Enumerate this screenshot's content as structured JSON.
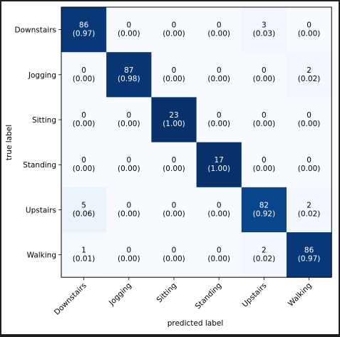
{
  "chart_data": {
    "type": "heatmap",
    "title": "",
    "xlabel": "predicted label",
    "ylabel": "true label",
    "x_categories": [
      "Downstairs",
      "Jogging",
      "Sitting",
      "Standing",
      "Upstairs",
      "Walking"
    ],
    "y_categories": [
      "Downstairs",
      "Jogging",
      "Sitting",
      "Standing",
      "Upstairs",
      "Walking"
    ],
    "counts": [
      [
        86,
        0,
        0,
        0,
        3,
        0
      ],
      [
        0,
        87,
        0,
        0,
        0,
        2
      ],
      [
        0,
        0,
        23,
        0,
        0,
        0
      ],
      [
        0,
        0,
        0,
        17,
        0,
        0
      ],
      [
        5,
        0,
        0,
        0,
        82,
        2
      ],
      [
        1,
        0,
        0,
        0,
        2,
        86
      ]
    ],
    "normalized": [
      [
        "0.97",
        "0.00",
        "0.00",
        "0.00",
        "0.03",
        "0.00"
      ],
      [
        "0.00",
        "0.98",
        "0.00",
        "0.00",
        "0.00",
        "0.02"
      ],
      [
        "0.00",
        "0.00",
        "1.00",
        "0.00",
        "0.00",
        "0.00"
      ],
      [
        "0.00",
        "0.00",
        "0.00",
        "1.00",
        "0.00",
        "0.00"
      ],
      [
        "0.06",
        "0.00",
        "0.00",
        "0.00",
        "0.92",
        "0.02"
      ],
      [
        "0.01",
        "0.00",
        "0.00",
        "0.00",
        "0.02",
        "0.97"
      ]
    ],
    "colormap": "Blues",
    "color_low": "#f7fbff",
    "color_high": "#08306b",
    "text_color_dark_cell": "#ffffff",
    "text_color_light_cell": "#000000",
    "grid": false
  }
}
